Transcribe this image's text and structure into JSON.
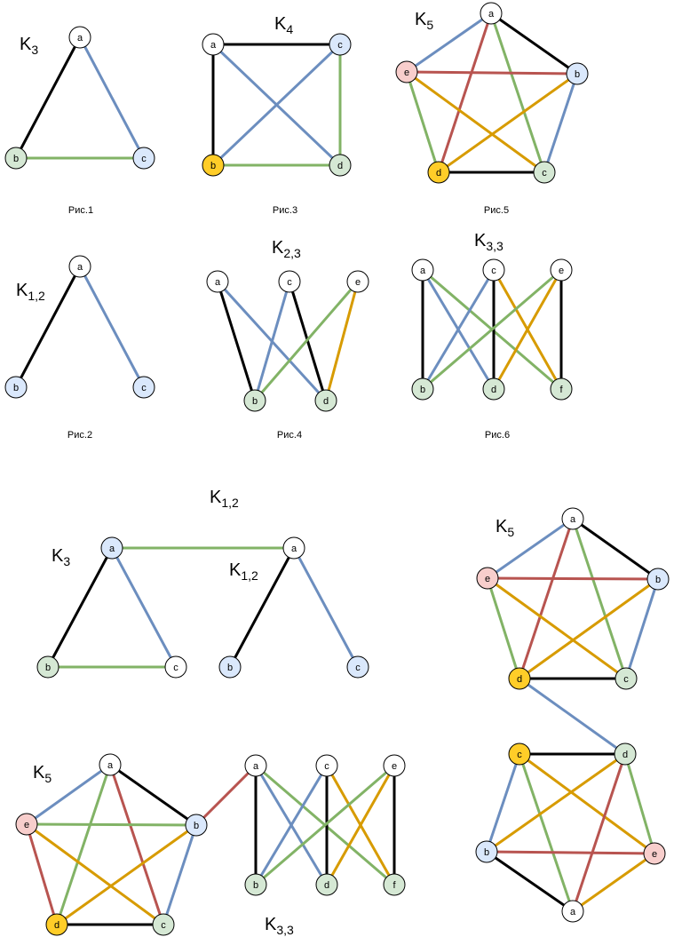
{
  "colors": {
    "white": "#ffffff",
    "green": "#d5e8d4",
    "blue": "#dae8fc",
    "orange": "#ffcd28",
    "red": "#f8cecc",
    "node_stroke": "#000000",
    "edge_black": "#000000",
    "edge_blue": "#6c8ebf",
    "edge_green": "#82b366",
    "edge_orange": "#d79b00",
    "edge_red": "#b85450"
  },
  "captions": [
    "Рис.1",
    "Рис.2",
    "Рис.3",
    "Рис.4",
    "Рис.5",
    "Рис.6"
  ],
  "titles": [
    {
      "main": "K",
      "sub": "3"
    },
    {
      "main": "K",
      "sub": "1,2"
    },
    {
      "main": "K",
      "sub": "4"
    },
    {
      "main": "K",
      "sub": "2,3"
    },
    {
      "main": "K",
      "sub": "5"
    },
    {
      "main": "K",
      "sub": "3,3"
    },
    {
      "main": "K",
      "sub": "1,2"
    },
    {
      "main": "K",
      "sub": "3"
    },
    {
      "main": "K",
      "sub": "1,2"
    },
    {
      "main": "K",
      "sub": "5"
    },
    {
      "main": "K",
      "sub": "5"
    },
    {
      "main": "K",
      "sub": "3,3"
    }
  ],
  "graphs": [
    {
      "id": "k3-fig1",
      "nodes": [
        {
          "id": "a",
          "label": "a",
          "color": "white"
        },
        {
          "id": "b",
          "label": "b",
          "color": "green"
        },
        {
          "id": "c",
          "label": "c",
          "color": "blue"
        }
      ],
      "edges": [
        [
          "a",
          "b",
          "black"
        ],
        [
          "a",
          "c",
          "blue"
        ],
        [
          "b",
          "c",
          "green"
        ]
      ]
    },
    {
      "id": "k12-fig2",
      "nodes": [
        {
          "id": "a",
          "label": "a",
          "color": "white"
        },
        {
          "id": "b",
          "label": "b",
          "color": "blue"
        },
        {
          "id": "c",
          "label": "c",
          "color": "blue"
        }
      ],
      "edges": [
        [
          "a",
          "b",
          "black"
        ],
        [
          "a",
          "c",
          "blue"
        ]
      ]
    },
    {
      "id": "k4-fig3",
      "nodes": [
        {
          "id": "a",
          "label": "a",
          "color": "white"
        },
        {
          "id": "c",
          "label": "c",
          "color": "blue"
        },
        {
          "id": "b",
          "label": "b",
          "color": "orange"
        },
        {
          "id": "d",
          "label": "d",
          "color": "green"
        }
      ],
      "edges": [
        [
          "a",
          "c",
          "black"
        ],
        [
          "a",
          "b",
          "black"
        ],
        [
          "a",
          "d",
          "blue"
        ],
        [
          "c",
          "b",
          "blue"
        ],
        [
          "c",
          "d",
          "green"
        ],
        [
          "b",
          "d",
          "green"
        ]
      ]
    },
    {
      "id": "k23-fig4",
      "nodes": [
        {
          "id": "a",
          "label": "a",
          "color": "white"
        },
        {
          "id": "c",
          "label": "c",
          "color": "white"
        },
        {
          "id": "e",
          "label": "e",
          "color": "white"
        },
        {
          "id": "b",
          "label": "b",
          "color": "green"
        },
        {
          "id": "d",
          "label": "d",
          "color": "green"
        }
      ],
      "edges": [
        [
          "a",
          "b",
          "black"
        ],
        [
          "a",
          "d",
          "blue"
        ],
        [
          "c",
          "b",
          "blue"
        ],
        [
          "c",
          "d",
          "black"
        ],
        [
          "e",
          "b",
          "green"
        ],
        [
          "e",
          "d",
          "orange"
        ]
      ]
    },
    {
      "id": "k5-fig5",
      "nodes": [
        {
          "id": "a",
          "label": "a",
          "color": "white"
        },
        {
          "id": "b",
          "label": "b",
          "color": "blue"
        },
        {
          "id": "c",
          "label": "c",
          "color": "green"
        },
        {
          "id": "d",
          "label": "d",
          "color": "orange"
        },
        {
          "id": "e",
          "label": "e",
          "color": "red"
        }
      ],
      "edges": [
        [
          "e",
          "a",
          "blue"
        ],
        [
          "a",
          "b",
          "black"
        ],
        [
          "b",
          "c",
          "blue"
        ],
        [
          "c",
          "d",
          "black"
        ],
        [
          "d",
          "e",
          "green"
        ],
        [
          "a",
          "d",
          "red"
        ],
        [
          "a",
          "c",
          "green"
        ],
        [
          "e",
          "b",
          "red"
        ],
        [
          "e",
          "c",
          "orange"
        ],
        [
          "b",
          "d",
          "orange"
        ]
      ]
    },
    {
      "id": "k33-fig6",
      "nodes": [
        {
          "id": "a",
          "label": "a",
          "color": "white"
        },
        {
          "id": "c",
          "label": "c",
          "color": "white"
        },
        {
          "id": "e",
          "label": "e",
          "color": "white"
        },
        {
          "id": "b",
          "label": "b",
          "color": "green"
        },
        {
          "id": "d",
          "label": "d",
          "color": "green"
        },
        {
          "id": "f",
          "label": "f",
          "color": "green"
        }
      ],
      "edges": [
        [
          "a",
          "b",
          "black"
        ],
        [
          "a",
          "d",
          "blue"
        ],
        [
          "a",
          "f",
          "green"
        ],
        [
          "c",
          "b",
          "blue"
        ],
        [
          "c",
          "d",
          "black"
        ],
        [
          "c",
          "f",
          "orange"
        ],
        [
          "e",
          "b",
          "green"
        ],
        [
          "e",
          "d",
          "orange"
        ],
        [
          "e",
          "f",
          "black"
        ]
      ]
    },
    {
      "id": "k3-bottom",
      "nodes": [
        {
          "id": "a",
          "label": "a",
          "color": "blue"
        },
        {
          "id": "b",
          "label": "b",
          "color": "green"
        },
        {
          "id": "c",
          "label": "c",
          "color": "white"
        }
      ],
      "edges": [
        [
          "a",
          "b",
          "black"
        ],
        [
          "a",
          "c",
          "blue"
        ],
        [
          "b",
          "c",
          "green"
        ]
      ]
    },
    {
      "id": "k12-bottom",
      "nodes": [
        {
          "id": "a",
          "label": "a",
          "color": "white"
        },
        {
          "id": "b",
          "label": "b",
          "color": "blue"
        },
        {
          "id": "c",
          "label": "c",
          "color": "blue"
        }
      ],
      "edges": [
        [
          "a",
          "b",
          "black"
        ],
        [
          "a",
          "c",
          "blue"
        ]
      ]
    },
    {
      "id": "k5-right-top",
      "nodes": [
        {
          "id": "a",
          "label": "a",
          "color": "white"
        },
        {
          "id": "b",
          "label": "b",
          "color": "blue"
        },
        {
          "id": "c",
          "label": "c",
          "color": "green"
        },
        {
          "id": "d",
          "label": "d",
          "color": "orange"
        },
        {
          "id": "e",
          "label": "e",
          "color": "red"
        }
      ],
      "edges": [
        [
          "e",
          "a",
          "blue"
        ],
        [
          "a",
          "b",
          "black"
        ],
        [
          "b",
          "c",
          "blue"
        ],
        [
          "c",
          "d",
          "black"
        ],
        [
          "d",
          "e",
          "green"
        ],
        [
          "a",
          "d",
          "red"
        ],
        [
          "a",
          "c",
          "green"
        ],
        [
          "e",
          "b",
          "red"
        ],
        [
          "e",
          "c",
          "orange"
        ],
        [
          "b",
          "d",
          "orange"
        ]
      ]
    },
    {
      "id": "k5-right-bottom",
      "nodes": [
        {
          "id": "c",
          "label": "c",
          "color": "orange"
        },
        {
          "id": "d",
          "label": "d",
          "color": "green"
        },
        {
          "id": "e",
          "label": "e",
          "color": "red"
        },
        {
          "id": "a",
          "label": "a",
          "color": "white"
        },
        {
          "id": "b",
          "label": "b",
          "color": "blue"
        }
      ],
      "edges": [
        [
          "c",
          "d",
          "black"
        ],
        [
          "d",
          "e",
          "green"
        ],
        [
          "e",
          "a",
          "orange"
        ],
        [
          "a",
          "b",
          "black"
        ],
        [
          "b",
          "c",
          "blue"
        ],
        [
          "c",
          "e",
          "orange"
        ],
        [
          "c",
          "a",
          "green"
        ],
        [
          "d",
          "b",
          "orange"
        ],
        [
          "d",
          "a",
          "red"
        ],
        [
          "b",
          "e",
          "red"
        ]
      ]
    },
    {
      "id": "k5-left-bottom",
      "nodes": [
        {
          "id": "a",
          "label": "a",
          "color": "white"
        },
        {
          "id": "b",
          "label": "b",
          "color": "blue"
        },
        {
          "id": "c",
          "label": "c",
          "color": "green"
        },
        {
          "id": "d",
          "label": "d",
          "color": "orange"
        },
        {
          "id": "e",
          "label": "e",
          "color": "red"
        }
      ],
      "edges": [
        [
          "e",
          "a",
          "blue"
        ],
        [
          "a",
          "b",
          "black"
        ],
        [
          "b",
          "c",
          "blue"
        ],
        [
          "c",
          "d",
          "black"
        ],
        [
          "d",
          "e",
          "red"
        ],
        [
          "a",
          "d",
          "green"
        ],
        [
          "a",
          "c",
          "red"
        ],
        [
          "e",
          "b",
          "green"
        ],
        [
          "e",
          "c",
          "orange"
        ],
        [
          "b",
          "d",
          "orange"
        ]
      ]
    },
    {
      "id": "k33-bottom",
      "nodes": [
        {
          "id": "a",
          "label": "a",
          "color": "white"
        },
        {
          "id": "c",
          "label": "c",
          "color": "white"
        },
        {
          "id": "e",
          "label": "e",
          "color": "white"
        },
        {
          "id": "b",
          "label": "b",
          "color": "green"
        },
        {
          "id": "d",
          "label": "d",
          "color": "green"
        },
        {
          "id": "f",
          "label": "f",
          "color": "green"
        }
      ],
      "edges": [
        [
          "a",
          "b",
          "black"
        ],
        [
          "a",
          "d",
          "blue"
        ],
        [
          "a",
          "f",
          "green"
        ],
        [
          "c",
          "b",
          "blue"
        ],
        [
          "c",
          "d",
          "black"
        ],
        [
          "c",
          "f",
          "orange"
        ],
        [
          "e",
          "b",
          "green"
        ],
        [
          "e",
          "d",
          "orange"
        ],
        [
          "e",
          "f",
          "black"
        ]
      ]
    }
  ],
  "connectors": [
    {
      "from": [
        "k3-bottom",
        "a"
      ],
      "to": [
        "k12-bottom",
        "a"
      ],
      "color": "green"
    },
    {
      "from": [
        "k5-right-top",
        "d"
      ],
      "to": [
        "k5-right-bottom",
        "d"
      ],
      "color": "blue"
    },
    {
      "from": [
        "k5-left-bottom",
        "b"
      ],
      "to": [
        "k33-bottom",
        "a"
      ],
      "color": "red"
    }
  ]
}
